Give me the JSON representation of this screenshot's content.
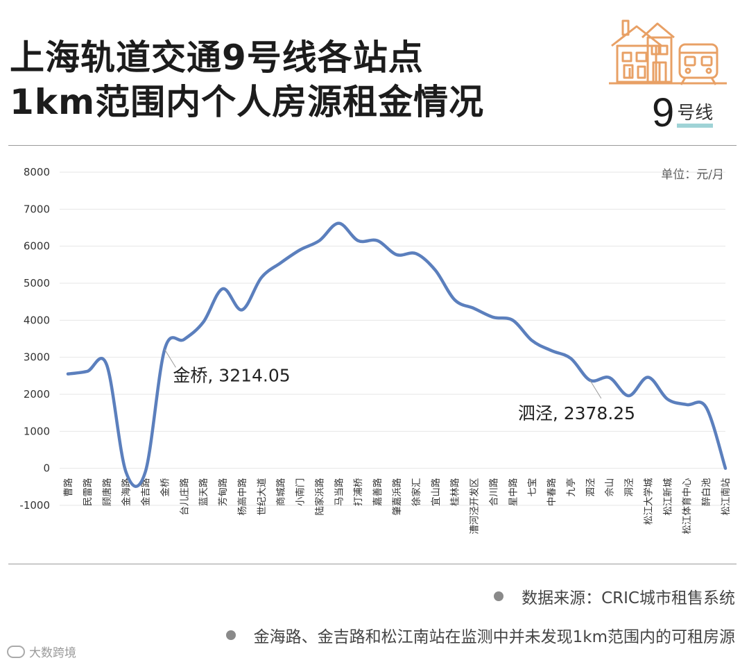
{
  "header": {
    "title_line1": "上海轨道交通9号线各站点",
    "title_line2": "1km范围内个人房源租金情况",
    "line_number": "9",
    "line_suffix": "号线",
    "accent_color": "#e8a065",
    "badge_underline_color": "#9fd3d6"
  },
  "chart_data": {
    "type": "line",
    "title": "",
    "xlabel": "",
    "ylabel": "",
    "unit": "单位：元/月",
    "ylim": [
      -1000,
      8000
    ],
    "yticks": [
      -1000,
      0,
      1000,
      2000,
      3000,
      4000,
      5000,
      6000,
      7000,
      8000
    ],
    "grid": true,
    "line_color": "#5b7fbd",
    "categories": [
      "曹路",
      "民雷路",
      "顾唐路",
      "金海路",
      "金吉路",
      "金桥",
      "台儿庄路",
      "蓝天路",
      "芳甸路",
      "杨高中路",
      "世纪大道",
      "商城路",
      "小南门",
      "陆家浜路",
      "马当路",
      "打浦桥",
      "嘉善路",
      "肇嘉浜路",
      "徐家汇",
      "宜山路",
      "桂林路",
      "漕河泾开发区",
      "合川路",
      "星中路",
      "七宝",
      "中春路",
      "九亭",
      "泗泾",
      "佘山",
      "洞泾",
      "松江大学城",
      "松江新城",
      "松江体育中心",
      "醉白池",
      "松江南站"
    ],
    "series": [
      {
        "values": [
          2550,
          2620,
          2800,
          -100,
          -100,
          3214.05,
          3480,
          3950,
          4850,
          4280,
          5150,
          5550,
          5900,
          6150,
          6620,
          6150,
          6150,
          5770,
          5800,
          5350,
          4550,
          4320,
          4080,
          4000,
          3450,
          3180,
          2970,
          2378.25,
          2450,
          1960,
          2460,
          1870,
          1720,
          1650,
          0
        ]
      }
    ],
    "annotations": [
      {
        "label": "金桥, 3214.05",
        "category": "金桥",
        "value": 3214.05
      },
      {
        "label": "泗泾, 2378.25",
        "category": "泗泾",
        "value": 2378.25
      }
    ]
  },
  "notes": {
    "source": "数据来源：CRIC城市租售系统",
    "remark": "金海路、金吉路和松江南站在监测中并未发现1km范围内的可租房源"
  },
  "footer": {
    "brand": "大数跨境"
  }
}
